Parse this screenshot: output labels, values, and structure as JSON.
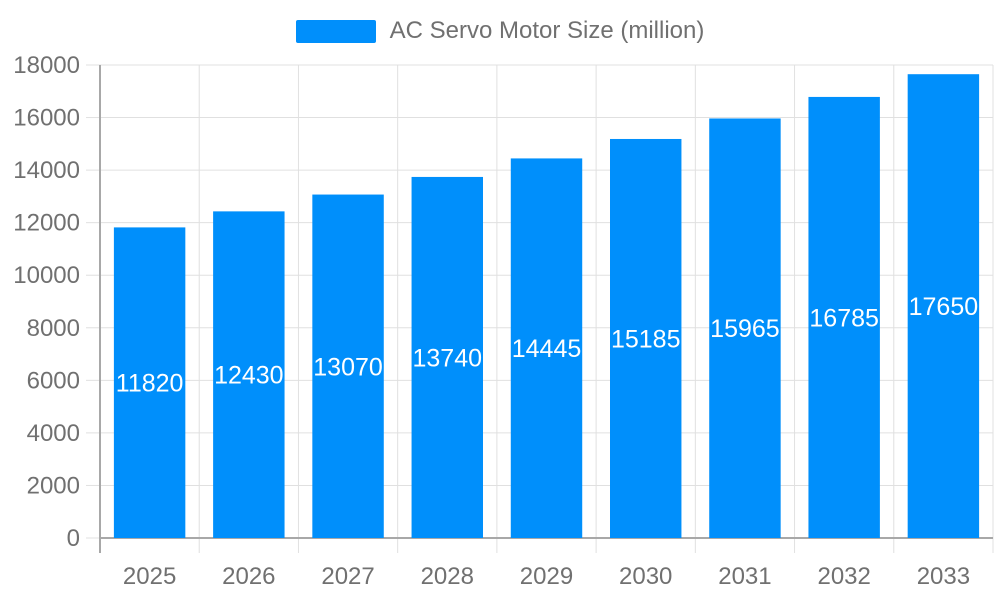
{
  "chart_data": {
    "type": "bar",
    "title": "AC Servo Motor Size (million)",
    "categories": [
      "2025",
      "2026",
      "2027",
      "2028",
      "2029",
      "2030",
      "2031",
      "2032",
      "2033"
    ],
    "values": [
      11820,
      12430,
      13070,
      13740,
      14445,
      15185,
      15965,
      16785,
      17650
    ],
    "xlabel": "",
    "ylabel": "",
    "ylim": [
      0,
      18000
    ],
    "ytick_step": 2000,
    "ytick_labels": [
      "0",
      "2000",
      "4000",
      "6000",
      "8000",
      "10000",
      "12000",
      "14000",
      "16000",
      "18000"
    ],
    "grid": true,
    "legend_position": "top",
    "value_label_position": "inside-middle",
    "colors": {
      "bar": "#008FFB",
      "bar_label_text": "#ffffff",
      "axis_text": "#707070",
      "grid_line": "#e0e0e0",
      "axis_line": "#a8a8a8",
      "background": "#ffffff"
    }
  }
}
